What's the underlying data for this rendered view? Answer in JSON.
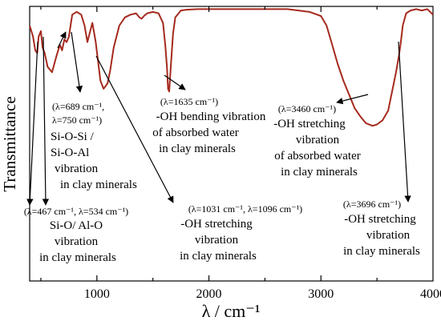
{
  "chart_data": {
    "type": "line",
    "title": "",
    "xlabel": "λ / cm⁻¹",
    "ylabel": "Transmittance",
    "xlim": [
      400,
      4000
    ],
    "ylim": [
      0,
      1
    ],
    "x_ticks": [
      1000,
      2000,
      3000,
      4000
    ],
    "x_tick_labels": [
      "1000",
      "2000",
      "3000",
      "4000"
    ],
    "y_ticks_shown": false,
    "grid": false,
    "series": [
      {
        "color": "#a52a1e",
        "x": [
          400,
          430,
          450,
          467,
          480,
          500,
          515,
          534,
          560,
          600,
          640,
          670,
          689,
          710,
          730,
          750,
          780,
          820,
          860,
          890,
          915,
          940,
          960,
          990,
          1031,
          1060,
          1096,
          1120,
          1150,
          1200,
          1250,
          1300,
          1350,
          1380,
          1400,
          1420,
          1450,
          1500,
          1550,
          1590,
          1610,
          1625,
          1635,
          1645,
          1660,
          1680,
          1700,
          1750,
          1800,
          1900,
          2000,
          2100,
          2200,
          2300,
          2400,
          2500,
          2600,
          2700,
          2800,
          2900,
          3000,
          3050,
          3100,
          3150,
          3200,
          3250,
          3300,
          3350,
          3400,
          3460,
          3500,
          3550,
          3600,
          3640,
          3670,
          3696,
          3710,
          3730,
          3760,
          3800,
          3850,
          3900,
          3950,
          4000
        ],
        "y": [
          0.93,
          0.89,
          0.84,
          0.83,
          0.89,
          0.91,
          0.85,
          0.83,
          0.78,
          0.76,
          0.82,
          0.86,
          0.84,
          0.88,
          0.87,
          0.89,
          0.97,
          0.98,
          0.97,
          0.93,
          0.87,
          0.91,
          0.94,
          0.87,
          0.73,
          0.7,
          0.72,
          0.77,
          0.85,
          0.93,
          0.96,
          0.97,
          0.975,
          0.96,
          0.955,
          0.965,
          0.975,
          0.98,
          0.975,
          0.94,
          0.86,
          0.78,
          0.7,
          0.69,
          0.78,
          0.9,
          0.96,
          0.985,
          0.988,
          0.99,
          0.99,
          0.99,
          0.99,
          0.99,
          0.99,
          0.99,
          0.99,
          0.99,
          0.985,
          0.98,
          0.965,
          0.93,
          0.86,
          0.79,
          0.73,
          0.68,
          0.63,
          0.6,
          0.575,
          0.565,
          0.57,
          0.585,
          0.62,
          0.7,
          0.76,
          0.82,
          0.86,
          0.93,
          0.975,
          0.985,
          0.99,
          0.985,
          0.99,
          0.97
        ]
      }
    ],
    "annotations": [
      {
        "id": "a467",
        "lines": [
          "(λ=467 cm⁻¹,  λ=534 cm⁻¹)",
          "Si-O/ Al-O",
          "vibration",
          "in clay minerals"
        ],
        "points_to": [
          467,
          534
        ]
      },
      {
        "id": "a689",
        "lines": [
          "(λ=689 cm⁻¹,",
          "λ=750 cm⁻¹)",
          "Si-O-Si /",
          "Si-O-Al",
          "vibration",
          "in clay minerals"
        ],
        "points_to": [
          689,
          750
        ]
      },
      {
        "id": "a1031",
        "lines": [
          "(λ=1031 cm⁻¹, λ=1096 cm⁻¹)",
          "-OH stretching",
          "vibration",
          "in clay minerals"
        ],
        "points_to": [
          1031,
          1096
        ]
      },
      {
        "id": "a1635",
        "lines": [
          "(λ=1635 cm⁻¹)",
          "-OH bending vibration",
          "of absorbed water",
          "in clay minerals"
        ],
        "points_to": [
          1635
        ]
      },
      {
        "id": "a3460",
        "lines": [
          "(λ=3460 cm⁻¹)",
          "-OH stretching",
          "vibration",
          "of absorbed water",
          "in clay minerals"
        ],
        "points_to": [
          3460
        ]
      },
      {
        "id": "a3696",
        "lines": [
          "(λ=3696 cm⁻¹)",
          "-OH stretching",
          "vibration",
          "in clay minerals"
        ],
        "points_to": [
          3696
        ]
      }
    ]
  }
}
